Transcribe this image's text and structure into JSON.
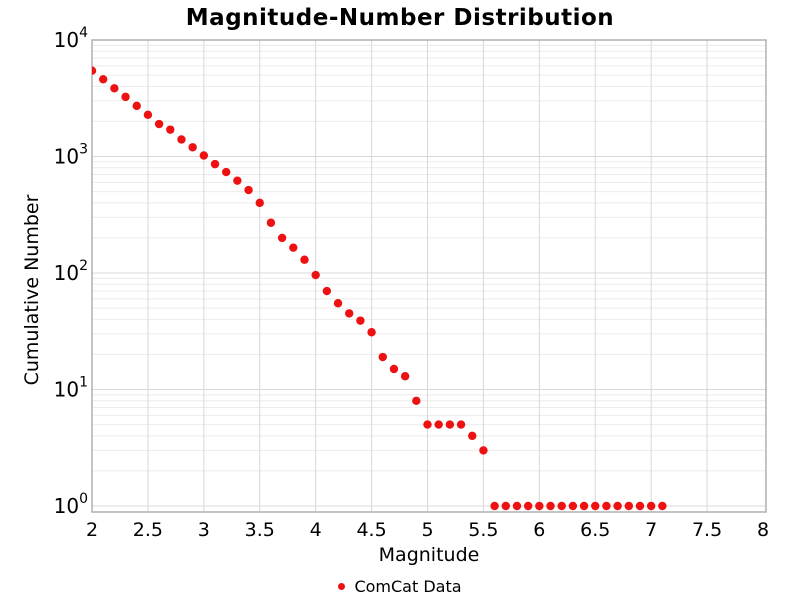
{
  "chart_data": {
    "type": "scatter",
    "title": "Magnitude-Number Distribution",
    "xlabel": "Magnitude",
    "ylabel": "Cumulative Number",
    "x_scale": "linear",
    "y_scale": "log10",
    "xlim": [
      2,
      8
    ],
    "ylim": [
      1,
      10000
    ],
    "x_tick_values": [
      2,
      2.5,
      3,
      3.5,
      4,
      4.5,
      5,
      5.5,
      6,
      6.5,
      7,
      7.5,
      8
    ],
    "x_tick_labels": [
      "2",
      "2.5",
      "3",
      "3.5",
      "4",
      "4.5",
      "5",
      "5.5",
      "6",
      "6.5",
      "7",
      "7.5",
      "8"
    ],
    "y_tick_exponents": [
      0,
      1,
      2,
      3,
      4
    ],
    "grid": {
      "major": true,
      "minor_y": true,
      "legend_position": "bottom-center"
    },
    "legend": {
      "label": "ComCat Data"
    },
    "series": [
      {
        "name": "ComCat Data",
        "marker": "circle",
        "color": "#ee1111",
        "x": [
          2.0,
          2.1,
          2.2,
          2.3,
          2.4,
          2.5,
          2.6,
          2.7,
          2.8,
          2.9,
          3.0,
          3.1,
          3.2,
          3.3,
          3.4,
          3.5,
          3.6,
          3.7,
          3.8,
          3.9,
          4.0,
          4.1,
          4.2,
          4.3,
          4.4,
          4.5,
          4.6,
          4.7,
          4.8,
          4.9,
          5.0,
          5.1,
          5.2,
          5.3,
          5.4,
          5.5,
          5.6,
          5.7,
          5.8,
          5.9,
          6.0,
          6.1,
          6.2,
          6.3,
          6.4,
          6.5,
          6.6,
          6.7,
          6.8,
          6.9,
          7.0,
          7.1
        ],
        "y": [
          5450,
          4600,
          3850,
          3250,
          2720,
          2280,
          1900,
          1700,
          1400,
          1200,
          1020,
          860,
          735,
          620,
          515,
          400,
          270,
          200,
          165,
          130,
          96,
          70,
          55,
          45,
          39,
          31,
          19,
          15,
          13,
          8,
          5,
          5,
          5,
          5,
          4,
          3,
          1,
          1,
          1,
          1,
          1,
          1,
          1,
          1,
          1,
          1,
          1,
          1,
          1,
          1,
          1,
          1
        ]
      }
    ]
  },
  "colors": {
    "marker": "#ee1111",
    "frame": "#aaaaaa",
    "grid_major": "#d8d8d8",
    "grid_minor": "#ebebeb",
    "text": "#000000",
    "background": "#ffffff"
  }
}
